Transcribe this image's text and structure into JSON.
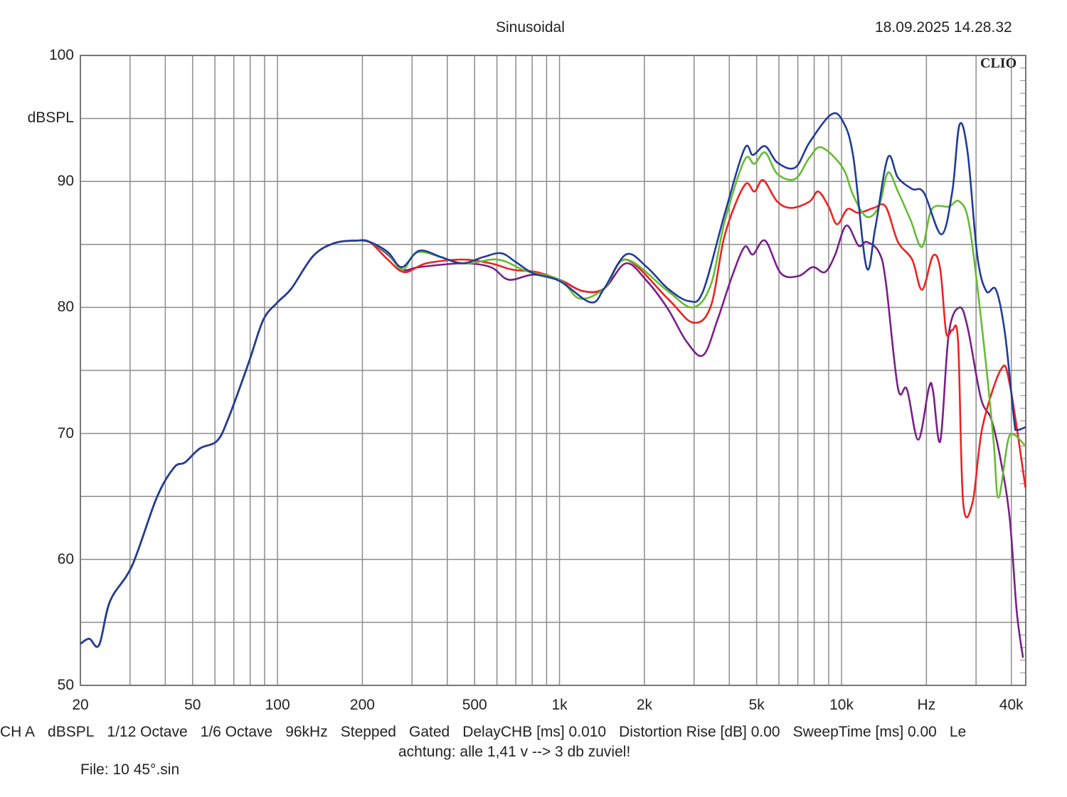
{
  "header": {
    "title": "Sinusoidal",
    "timestamp": "18.09.2025 14.28.32",
    "logo": "CLIO"
  },
  "footer": {
    "settings": [
      "CH A",
      "dBSPL",
      "1/12 Octave",
      "1/6 Octave",
      "96kHz",
      "Stepped",
      "Gated",
      "DelayCHB [ms] 0.010",
      "Distortion Rise [dB] 0.00",
      "SweepTime [ms] 0.00",
      "Le"
    ],
    "note": "achtung: alle 1,41 v --> 3 db zuviel!",
    "file": "File: 10 45°.sin"
  },
  "chart_data": {
    "type": "line",
    "title": "Sinusoidal",
    "ylabel": "dBSPL",
    "xlabel": "Hz",
    "xscale": "log",
    "xlim": [
      20,
      45000
    ],
    "ylim": [
      50,
      100
    ],
    "grid": true,
    "y_ticks": [
      "100",
      "90",
      "80",
      "70",
      "60",
      "50"
    ],
    "x_ticks": [
      {
        "value": 20,
        "label": "20"
      },
      {
        "value": 50,
        "label": "50"
      },
      {
        "value": 100,
        "label": "100"
      },
      {
        "value": 200,
        "label": "200"
      },
      {
        "value": 500,
        "label": "500"
      },
      {
        "value": 1000,
        "label": "1k"
      },
      {
        "value": 2000,
        "label": "2k"
      },
      {
        "value": 5000,
        "label": "5k"
      },
      {
        "value": 10000,
        "label": "10k"
      },
      {
        "value": 20000,
        "label": "Hz"
      },
      {
        "value": 40000,
        "label": "40k"
      }
    ],
    "common_low": [
      [
        20,
        53.3
      ],
      [
        21.5,
        53.7
      ],
      [
        23.3,
        53.2
      ],
      [
        25.5,
        56.7
      ],
      [
        30.5,
        59.5
      ],
      [
        37.3,
        64.9
      ],
      [
        43,
        67.3
      ],
      [
        47,
        67.7
      ],
      [
        53,
        68.8
      ],
      [
        61,
        69.4
      ],
      [
        66.7,
        71.1
      ],
      [
        79,
        75.6
      ],
      [
        89,
        79
      ],
      [
        100,
        80.4
      ],
      [
        112,
        81.5
      ],
      [
        134,
        84.1
      ],
      [
        159,
        85.1
      ],
      [
        189,
        85.3
      ],
      [
        212,
        85.2
      ]
    ],
    "series": [
      {
        "color": "#7a1f8a",
        "points": [
          [
            246,
            84.2
          ],
          [
            278,
            83.0
          ],
          [
            318,
            83.2
          ],
          [
            452,
            83.5
          ],
          [
            570,
            83.2
          ],
          [
            660,
            82.2
          ],
          [
            808,
            82.6
          ],
          [
            1000,
            82.2
          ],
          [
            1210,
            81.3
          ],
          [
            1440,
            81.5
          ],
          [
            1720,
            83.5
          ],
          [
            2040,
            82.1
          ],
          [
            2420,
            79.9
          ],
          [
            2820,
            77.3
          ],
          [
            3230,
            76.2
          ],
          [
            3630,
            79.0
          ],
          [
            4080,
            82.4
          ],
          [
            4530,
            84.8
          ],
          [
            4850,
            84.2
          ],
          [
            5360,
            85.3
          ],
          [
            6100,
            82.7
          ],
          [
            7050,
            82.5
          ],
          [
            7900,
            83.2
          ],
          [
            8730,
            82.8
          ],
          [
            9460,
            84.1
          ],
          [
            10400,
            86.5
          ],
          [
            11490,
            84.9
          ],
          [
            12260,
            85.2
          ],
          [
            13560,
            84.4
          ],
          [
            14340,
            82.1
          ],
          [
            15850,
            73.6
          ],
          [
            17060,
            73.5
          ],
          [
            18700,
            69.5
          ],
          [
            20400,
            73.6
          ],
          [
            21100,
            73.4
          ],
          [
            22400,
            69.4
          ],
          [
            24000,
            77.9
          ],
          [
            26200,
            80.0
          ],
          [
            28000,
            78.4
          ],
          [
            31200,
            72.8
          ],
          [
            34000,
            71.1
          ],
          [
            36800,
            67.7
          ],
          [
            39500,
            63.2
          ],
          [
            41800,
            55.9
          ],
          [
            44000,
            52.2
          ]
        ]
      },
      {
        "color": "#ee2222",
        "points": [
          [
            246,
            83.8
          ],
          [
            282,
            82.8
          ],
          [
            337,
            83.5
          ],
          [
            452,
            83.8
          ],
          [
            570,
            83.5
          ],
          [
            680,
            83.0
          ],
          [
            830,
            82.8
          ],
          [
            1000,
            82.2
          ],
          [
            1210,
            81.3
          ],
          [
            1440,
            81.5
          ],
          [
            1720,
            83.8
          ],
          [
            2420,
            80.7
          ],
          [
            2970,
            78.8
          ],
          [
            3440,
            80.1
          ],
          [
            3860,
            85.8
          ],
          [
            4530,
            89.7
          ],
          [
            4910,
            89.2
          ],
          [
            5280,
            90.1
          ],
          [
            5920,
            88.4
          ],
          [
            6650,
            87.9
          ],
          [
            7700,
            88.4
          ],
          [
            8270,
            89.2
          ],
          [
            9000,
            88.0
          ],
          [
            9640,
            86.6
          ],
          [
            10500,
            87.8
          ],
          [
            11490,
            87.5
          ],
          [
            13020,
            87.9
          ],
          [
            14340,
            88.0
          ],
          [
            15850,
            85.2
          ],
          [
            17800,
            83.8
          ],
          [
            19300,
            81.4
          ],
          [
            21100,
            84.1
          ],
          [
            22400,
            83.0
          ],
          [
            23500,
            78.0
          ],
          [
            24700,
            78.2
          ],
          [
            25900,
            77.3
          ],
          [
            27000,
            64.5
          ],
          [
            29200,
            64.6
          ],
          [
            31600,
            70.5
          ],
          [
            36800,
            75.1
          ],
          [
            39500,
            73.9
          ],
          [
            44900,
            65.7
          ]
        ]
      },
      {
        "color": "#66bb33",
        "points": [
          [
            246,
            84.3
          ],
          [
            278,
            83.0
          ],
          [
            318,
            84.4
          ],
          [
            452,
            83.5
          ],
          [
            604,
            83.8
          ],
          [
            760,
            82.9
          ],
          [
            1000,
            82.2
          ],
          [
            1180,
            80.7
          ],
          [
            1440,
            81.5
          ],
          [
            1720,
            83.8
          ],
          [
            2420,
            81.3
          ],
          [
            2970,
            80.0
          ],
          [
            3440,
            81.8
          ],
          [
            3860,
            86.9
          ],
          [
            4530,
            91.7
          ],
          [
            4910,
            91.4
          ],
          [
            5360,
            92.3
          ],
          [
            5920,
            90.6
          ],
          [
            6850,
            90.2
          ],
          [
            7700,
            91.9
          ],
          [
            8500,
            92.7
          ],
          [
            10090,
            91.1
          ],
          [
            11000,
            88.9
          ],
          [
            12260,
            87.2
          ],
          [
            13560,
            88.0
          ],
          [
            14600,
            90.7
          ],
          [
            15850,
            89.2
          ],
          [
            17600,
            86.9
          ],
          [
            19300,
            84.8
          ],
          [
            20900,
            87.8
          ],
          [
            24000,
            88.0
          ],
          [
            26200,
            88.4
          ],
          [
            28500,
            86.3
          ],
          [
            32100,
            76.7
          ],
          [
            34600,
            69.4
          ],
          [
            36000,
            64.9
          ],
          [
            38900,
            69.4
          ],
          [
            40900,
            69.9
          ],
          [
            44900,
            69.0
          ]
        ]
      },
      {
        "color": "#1f3c99",
        "points": [
          [
            246,
            84.4
          ],
          [
            276,
            83.2
          ],
          [
            318,
            84.5
          ],
          [
            380,
            84.0
          ],
          [
            452,
            83.5
          ],
          [
            537,
            84.0
          ],
          [
            621,
            84.3
          ],
          [
            700,
            83.6
          ],
          [
            808,
            82.7
          ],
          [
            1000,
            82.1
          ],
          [
            1290,
            80.4
          ],
          [
            1440,
            81.5
          ],
          [
            1720,
            84.2
          ],
          [
            2040,
            83.2
          ],
          [
            2420,
            81.5
          ],
          [
            2880,
            80.5
          ],
          [
            3230,
            81.3
          ],
          [
            3860,
            87.5
          ],
          [
            4530,
            92.6
          ],
          [
            4850,
            92.1
          ],
          [
            5360,
            92.8
          ],
          [
            5920,
            91.5
          ],
          [
            6850,
            91.1
          ],
          [
            7700,
            93.1
          ],
          [
            9170,
            95.3
          ],
          [
            10090,
            94.8
          ],
          [
            11000,
            92.0
          ],
          [
            12260,
            83.2
          ],
          [
            13170,
            86.3
          ],
          [
            14600,
            91.9
          ],
          [
            15850,
            90.3
          ],
          [
            17800,
            89.4
          ],
          [
            19600,
            89.1
          ],
          [
            22600,
            85.8
          ],
          [
            24700,
            89.2
          ],
          [
            26200,
            94.5
          ],
          [
            28000,
            92.3
          ],
          [
            30300,
            84.1
          ],
          [
            32600,
            81.3
          ],
          [
            35300,
            81.4
          ],
          [
            38000,
            77.9
          ],
          [
            40900,
            71.1
          ],
          [
            41800,
            70.3
          ],
          [
            44900,
            70.5
          ]
        ]
      }
    ]
  }
}
